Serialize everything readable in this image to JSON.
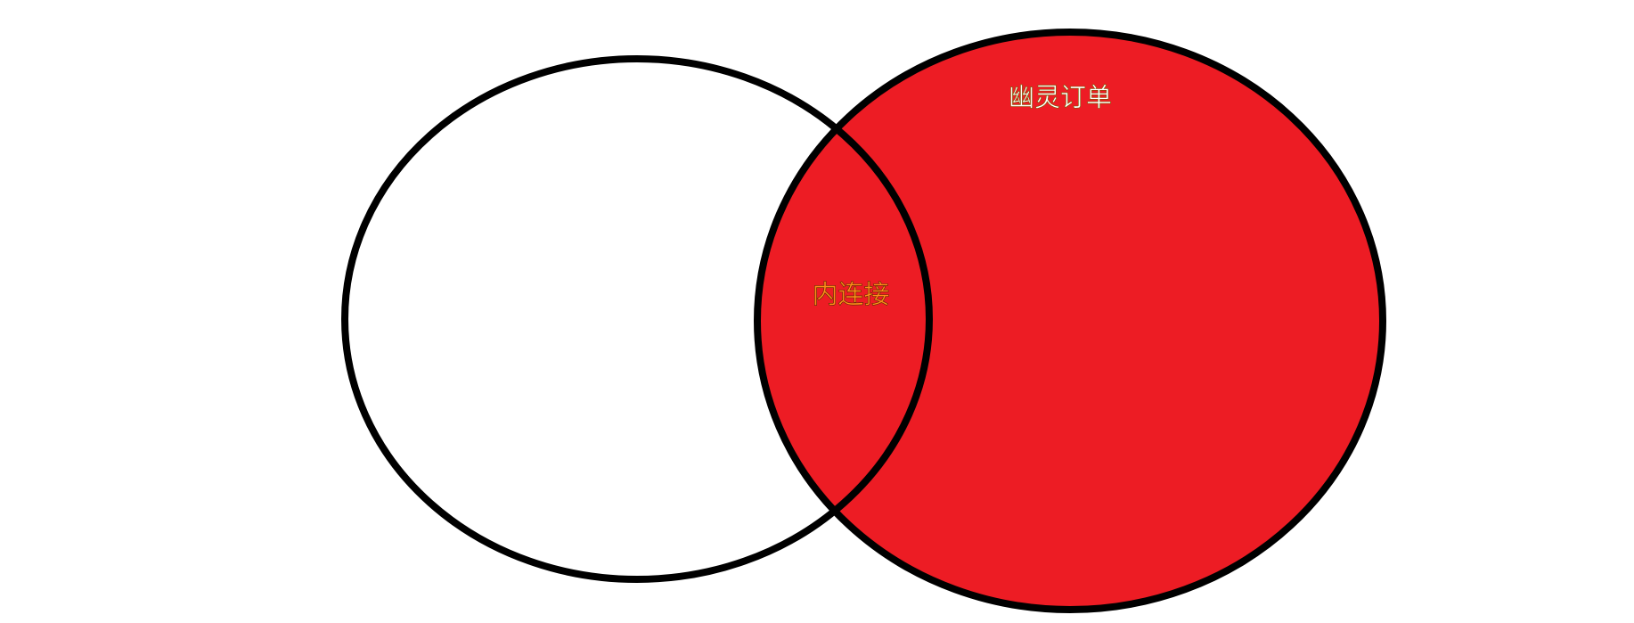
{
  "diagram": {
    "title": "",
    "colors": {
      "background": "#ffffff",
      "outline": "#000000",
      "fill": "#ed1c24",
      "label_light": "#ffffff",
      "label_inner": "#ff8c1a"
    },
    "labels": {
      "ghost_orders": "幽灵订单",
      "inner_join": "内连接"
    }
  }
}
